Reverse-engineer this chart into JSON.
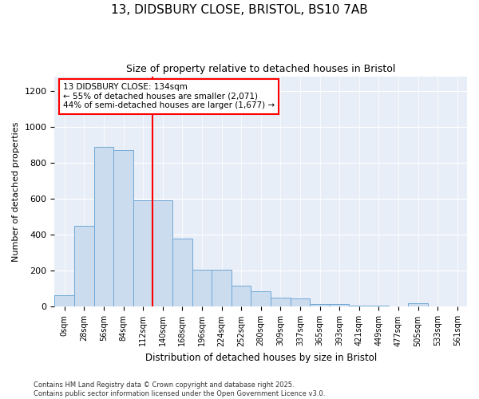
{
  "title_line1": "13, DIDSBURY CLOSE, BRISTOL, BS10 7AB",
  "title_line2": "Size of property relative to detached houses in Bristol",
  "xlabel": "Distribution of detached houses by size in Bristol",
  "ylabel": "Number of detached properties",
  "bin_labels": [
    "0sqm",
    "28sqm",
    "56sqm",
    "84sqm",
    "112sqm",
    "140sqm",
    "168sqm",
    "196sqm",
    "224sqm",
    "252sqm",
    "280sqm",
    "309sqm",
    "337sqm",
    "365sqm",
    "393sqm",
    "421sqm",
    "449sqm",
    "477sqm",
    "505sqm",
    "533sqm",
    "561sqm"
  ],
  "bar_heights": [
    65,
    450,
    890,
    870,
    590,
    590,
    380,
    205,
    205,
    115,
    85,
    50,
    45,
    15,
    15,
    5,
    5,
    0,
    20,
    0,
    0
  ],
  "bar_color": "#ccdcef",
  "bar_edge_color": "#6fa8d6",
  "vline_color": "red",
  "annotation_text": "13 DIDSBURY CLOSE: 134sqm\n← 55% of detached houses are smaller (2,071)\n44% of semi-detached houses are larger (1,677) →",
  "annotation_box_color": "white",
  "annotation_box_edge": "red",
  "ylim": [
    0,
    1280
  ],
  "yticks": [
    0,
    200,
    400,
    600,
    800,
    1000,
    1200
  ],
  "bg_color": "#e8eef7",
  "footer": "Contains HM Land Registry data © Crown copyright and database right 2025.\nContains public sector information licensed under the Open Government Licence v3.0.",
  "figsize": [
    6.0,
    5.0
  ],
  "dpi": 100
}
